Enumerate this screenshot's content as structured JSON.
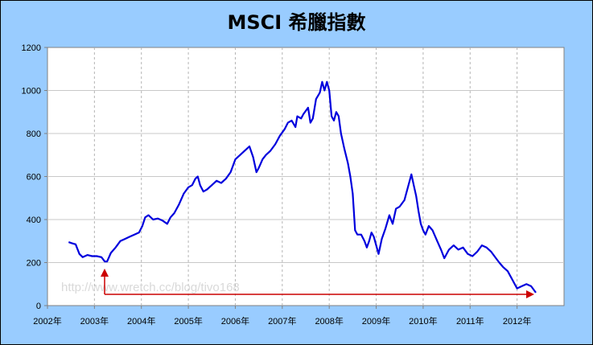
{
  "chart_data": {
    "type": "line",
    "title": "MSCI 希臘指數",
    "xlabel": "",
    "ylabel": "",
    "xlim": [
      2002,
      2013
    ],
    "ylim": [
      0,
      1200
    ],
    "yticks": [
      0,
      200,
      400,
      600,
      800,
      1000,
      1200
    ],
    "xticks": [
      "2002年",
      "2003年",
      "2004年",
      "2005年",
      "2006年",
      "2007年",
      "2008年",
      "2009年",
      "2010年",
      "2011年",
      "2012年"
    ],
    "grid": true,
    "legend": "none",
    "watermark": "http://www.wretch.cc/blog/tivo168",
    "colors": {
      "line": "#0000dd",
      "arrow": "#cc0000",
      "frame": "#99ccff"
    },
    "series": [
      {
        "x": [
          2002.45,
          2002.52,
          2002.6,
          2002.68,
          2002.75,
          2002.85,
          2002.95,
          2003.05,
          2003.15,
          2003.22,
          2003.27,
          2003.35,
          2003.45,
          2003.55,
          2003.65,
          2003.75,
          2003.85,
          2003.95,
          2004.02,
          2004.08,
          2004.15,
          2004.25,
          2004.35,
          2004.45,
          2004.55,
          2004.62,
          2004.7,
          2004.8,
          2004.9,
          2005.0,
          2005.08,
          2005.15,
          2005.2,
          2005.25,
          2005.32,
          2005.4,
          2005.5,
          2005.6,
          2005.7,
          2005.8,
          2005.9,
          2006.0,
          2006.1,
          2006.2,
          2006.3,
          2006.38,
          2006.45,
          2006.5,
          2006.58,
          2006.65,
          2006.75,
          2006.85,
          2006.95,
          2007.05,
          2007.12,
          2007.2,
          2007.28,
          2007.32,
          2007.4,
          2007.45,
          2007.55,
          2007.6,
          2007.65,
          2007.72,
          2007.8,
          2007.85,
          2007.9,
          2007.95,
          2008.0,
          2008.05,
          2008.1,
          2008.15,
          2008.2,
          2008.25,
          2008.32,
          2008.4,
          2008.45,
          2008.5,
          2008.55,
          2008.6,
          2008.68,
          2008.75,
          2008.8,
          2008.85,
          2008.9,
          2008.95,
          2009.05,
          2009.12,
          2009.2,
          2009.28,
          2009.35,
          2009.42,
          2009.5,
          2009.6,
          2009.7,
          2009.75,
          2009.8,
          2009.85,
          2009.9,
          2009.95,
          2010.0,
          2010.05,
          2010.12,
          2010.2,
          2010.3,
          2010.38,
          2010.45,
          2010.55,
          2010.65,
          2010.75,
          2010.85,
          2010.95,
          2011.05,
          2011.15,
          2011.25,
          2011.35,
          2011.45,
          2011.55,
          2011.62,
          2011.7,
          2011.8,
          2011.9,
          2012.0,
          2012.1,
          2012.2,
          2012.3,
          2012.4
        ],
        "y": [
          295,
          290,
          285,
          240,
          225,
          235,
          230,
          230,
          225,
          205,
          205,
          245,
          270,
          300,
          310,
          320,
          330,
          340,
          370,
          410,
          420,
          400,
          405,
          395,
          380,
          410,
          430,
          470,
          520,
          550,
          560,
          590,
          600,
          560,
          530,
          540,
          560,
          580,
          570,
          590,
          620,
          680,
          700,
          720,
          740,
          690,
          620,
          640,
          680,
          700,
          720,
          750,
          790,
          820,
          850,
          860,
          830,
          880,
          870,
          890,
          920,
          850,
          870,
          960,
          990,
          1040,
          1000,
          1040,
          1000,
          880,
          860,
          900,
          880,
          800,
          730,
          660,
          600,
          520,
          350,
          330,
          330,
          300,
          270,
          300,
          340,
          320,
          240,
          310,
          360,
          420,
          380,
          450,
          460,
          490,
          570,
          610,
          560,
          510,
          440,
          380,
          350,
          330,
          370,
          350,
          300,
          260,
          220,
          260,
          280,
          260,
          270,
          240,
          230,
          250,
          280,
          270,
          250,
          220,
          200,
          180,
          160,
          120,
          80,
          90,
          100,
          90,
          60
        ]
      }
    ]
  }
}
